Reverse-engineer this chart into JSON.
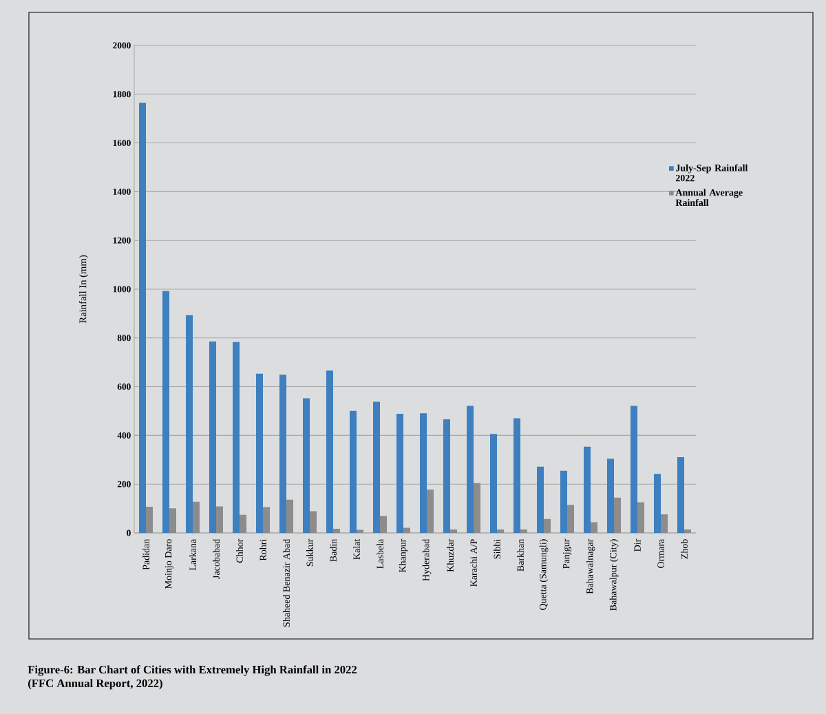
{
  "chart_data": {
    "type": "bar",
    "categories": [
      "Padidan",
      "Moinjo Daro",
      "Larkana",
      "Jacobabad",
      "Chhor",
      "Rohri",
      "Shaheed Benazir Abad",
      "Sukkur",
      "Badin",
      "Kalat",
      "Lasbela",
      "Khanpur",
      "Hyderabad",
      "Khuzdar",
      "Karachi A/P",
      "Sibbi",
      "Barkhan",
      "Quetta (Samungli)",
      "Panjgur",
      "Bahawalnagar",
      "Bahawalpur (City)",
      "Dir",
      "Ormara",
      "Zhob"
    ],
    "series": [
      {
        "name": "July-Sep Rainfall 2022",
        "color": "#3d7fbf",
        "values": [
          1765,
          992,
          893,
          785,
          783,
          653,
          649,
          552,
          666,
          501,
          538,
          489,
          491,
          466,
          521,
          406,
          470,
          272,
          255,
          354,
          304,
          521,
          242,
          311
        ]
      },
      {
        "name": "Annual Average Rainfall",
        "color": "#8c8c8c",
        "values": [
          107,
          101,
          128,
          109,
          74,
          106,
          136,
          89,
          17,
          13,
          70,
          21,
          178,
          14,
          205,
          14,
          14,
          57,
          115,
          44,
          145,
          126,
          76,
          14
        ]
      }
    ],
    "ylim": [
      0,
      2000
    ],
    "yticks": [
      0,
      200,
      400,
      600,
      800,
      1000,
      1200,
      1400,
      1600,
      1800,
      2000
    ],
    "ylabel": "Rainfall In (mm)",
    "grid": "y",
    "legend": "right",
    "annotations": [
      "Figure-6: Bar Chart of Cities with Extremely High Rainfall in 2022",
      "(FFC Annual Report, 2022)"
    ]
  }
}
